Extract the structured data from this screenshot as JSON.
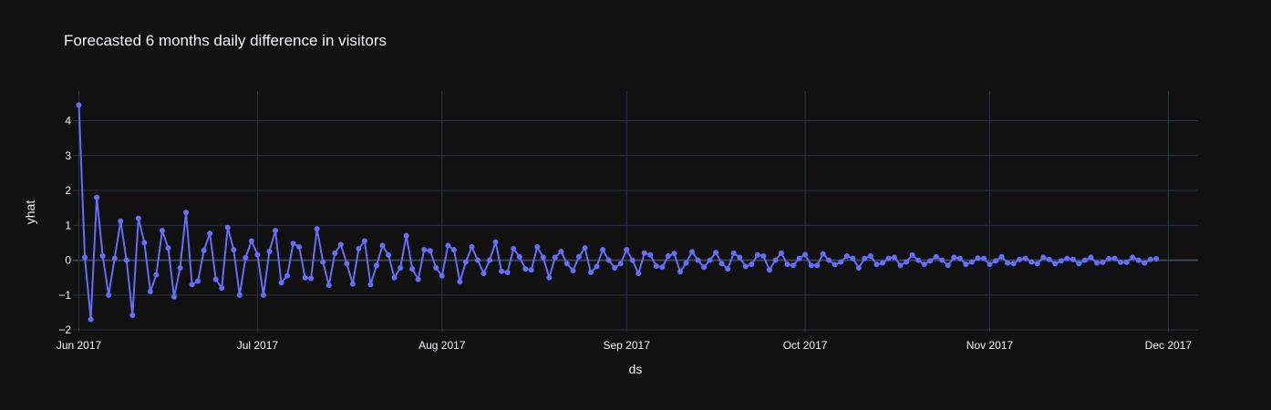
{
  "chart_data": {
    "type": "line",
    "title": "Forecasted 6 months daily difference in visitors",
    "xlabel": "ds",
    "ylabel": "yhat",
    "x_range": [
      "2017-05-31",
      "2017-12-06"
    ],
    "ylim": [
      -2.05,
      4.85
    ],
    "x_tick_labels": [
      "Jun 2017",
      "Jul 2017",
      "Aug 2017",
      "Sep 2017",
      "Oct 2017",
      "Nov 2017",
      "Dec 2017"
    ],
    "x_tick_dates": [
      "2017-06-01",
      "2017-07-01",
      "2017-08-01",
      "2017-09-01",
      "2017-10-01",
      "2017-11-01",
      "2017-12-01"
    ],
    "y_ticks": [
      -2,
      -1,
      0,
      1,
      2,
      3,
      4
    ],
    "y_tick_labels": [
      "−2",
      "−1",
      "0",
      "1",
      "2",
      "3",
      "4"
    ],
    "grid": true,
    "colors": {
      "background": "#111111",
      "grid": "#283442",
      "zeroline": "#3a4556",
      "line": "#636efa",
      "text": "#f2f5fa"
    },
    "series": [
      {
        "mode": "lines+markers",
        "x": [
          "2017-06-01",
          "2017-06-02",
          "2017-06-03",
          "2017-06-04",
          "2017-06-05",
          "2017-06-06",
          "2017-06-07",
          "2017-06-08",
          "2017-06-09",
          "2017-06-10",
          "2017-06-11",
          "2017-06-12",
          "2017-06-13",
          "2017-06-14",
          "2017-06-15",
          "2017-06-16",
          "2017-06-17",
          "2017-06-18",
          "2017-06-19",
          "2017-06-20",
          "2017-06-21",
          "2017-06-22",
          "2017-06-23",
          "2017-06-24",
          "2017-06-25",
          "2017-06-26",
          "2017-06-27",
          "2017-06-28",
          "2017-06-29",
          "2017-06-30",
          "2017-07-01",
          "2017-07-02",
          "2017-07-03",
          "2017-07-04",
          "2017-07-05",
          "2017-07-06",
          "2017-07-07",
          "2017-07-08",
          "2017-07-09",
          "2017-07-10",
          "2017-07-11",
          "2017-07-12",
          "2017-07-13",
          "2017-07-14",
          "2017-07-15",
          "2017-07-16",
          "2017-07-17",
          "2017-07-18",
          "2017-07-19",
          "2017-07-20",
          "2017-07-21",
          "2017-07-22",
          "2017-07-23",
          "2017-07-24",
          "2017-07-25",
          "2017-07-26",
          "2017-07-27",
          "2017-07-28",
          "2017-07-29",
          "2017-07-30",
          "2017-07-31",
          "2017-08-01",
          "2017-08-02",
          "2017-08-03",
          "2017-08-04",
          "2017-08-05",
          "2017-08-06",
          "2017-08-07",
          "2017-08-08",
          "2017-08-09",
          "2017-08-10",
          "2017-08-11",
          "2017-08-12",
          "2017-08-13",
          "2017-08-14",
          "2017-08-15",
          "2017-08-16",
          "2017-08-17",
          "2017-08-18",
          "2017-08-19",
          "2017-08-20",
          "2017-08-21",
          "2017-08-22",
          "2017-08-23",
          "2017-08-24",
          "2017-08-25",
          "2017-08-26",
          "2017-08-27",
          "2017-08-28",
          "2017-08-29",
          "2017-08-30",
          "2017-08-31",
          "2017-09-01",
          "2017-09-02",
          "2017-09-03",
          "2017-09-04",
          "2017-09-05",
          "2017-09-06",
          "2017-09-07",
          "2017-09-08",
          "2017-09-09",
          "2017-09-10",
          "2017-09-11",
          "2017-09-12",
          "2017-09-13",
          "2017-09-14",
          "2017-09-15",
          "2017-09-16",
          "2017-09-17",
          "2017-09-18",
          "2017-09-19",
          "2017-09-20",
          "2017-09-21",
          "2017-09-22",
          "2017-09-23",
          "2017-09-24",
          "2017-09-25",
          "2017-09-26",
          "2017-09-27",
          "2017-09-28",
          "2017-09-29",
          "2017-09-30",
          "2017-10-01",
          "2017-10-02",
          "2017-10-03",
          "2017-10-04",
          "2017-10-05",
          "2017-10-06",
          "2017-10-07",
          "2017-10-08",
          "2017-10-09",
          "2017-10-10",
          "2017-10-11",
          "2017-10-12",
          "2017-10-13",
          "2017-10-14",
          "2017-10-15",
          "2017-10-16",
          "2017-10-17",
          "2017-10-18",
          "2017-10-19",
          "2017-10-20",
          "2017-10-21",
          "2017-10-22",
          "2017-10-23",
          "2017-10-24",
          "2017-10-25",
          "2017-10-26",
          "2017-10-27",
          "2017-10-28",
          "2017-10-29",
          "2017-10-30",
          "2017-10-31",
          "2017-11-01",
          "2017-11-02",
          "2017-11-03",
          "2017-11-04",
          "2017-11-05",
          "2017-11-06",
          "2017-11-07",
          "2017-11-08",
          "2017-11-09",
          "2017-11-10",
          "2017-11-11",
          "2017-11-12",
          "2017-11-13",
          "2017-11-14",
          "2017-11-15",
          "2017-11-16",
          "2017-11-17",
          "2017-11-18",
          "2017-11-19",
          "2017-11-20",
          "2017-11-21",
          "2017-11-22",
          "2017-11-23",
          "2017-11-24",
          "2017-11-25",
          "2017-11-26",
          "2017-11-27",
          "2017-11-28",
          "2017-11-29"
        ],
        "y": [
          4.45,
          0.08,
          -1.7,
          1.8,
          0.12,
          -1.0,
          0.05,
          1.12,
          0.0,
          -1.58,
          1.2,
          0.5,
          -0.9,
          -0.42,
          0.85,
          0.35,
          -1.05,
          -0.22,
          1.37,
          -0.7,
          -0.6,
          0.28,
          0.77,
          -0.55,
          -0.8,
          0.94,
          0.3,
          -1.0,
          0.07,
          0.55,
          0.16,
          -1.0,
          0.25,
          0.85,
          -0.65,
          -0.45,
          0.48,
          0.38,
          -0.5,
          -0.52,
          0.9,
          -0.05,
          -0.72,
          0.2,
          0.45,
          -0.1,
          -0.68,
          0.33,
          0.55,
          -0.7,
          -0.15,
          0.42,
          0.15,
          -0.5,
          -0.22,
          0.7,
          -0.25,
          -0.55,
          0.3,
          0.27,
          -0.22,
          -0.45,
          0.42,
          0.3,
          -0.62,
          -0.05,
          0.38,
          0.0,
          -0.38,
          0.0,
          0.52,
          -0.32,
          -0.35,
          0.33,
          0.1,
          -0.25,
          -0.28,
          0.38,
          0.08,
          -0.5,
          0.08,
          0.25,
          -0.1,
          -0.3,
          0.1,
          0.35,
          -0.35,
          -0.18,
          0.3,
          0.0,
          -0.22,
          -0.1,
          0.3,
          0.0,
          -0.38,
          0.2,
          0.15,
          -0.17,
          -0.2,
          0.12,
          0.19,
          -0.33,
          -0.08,
          0.24,
          0.0,
          -0.2,
          0.0,
          0.22,
          -0.1,
          -0.25,
          0.2,
          0.08,
          -0.18,
          -0.12,
          0.15,
          0.12,
          -0.28,
          0.0,
          0.2,
          -0.12,
          -0.15,
          0.05,
          0.16,
          -0.15,
          -0.15,
          0.18,
          0.0,
          -0.13,
          -0.05,
          0.12,
          0.05,
          -0.22,
          0.05,
          0.12,
          -0.12,
          -0.08,
          0.05,
          0.08,
          -0.15,
          -0.05,
          0.15,
          0.0,
          -0.12,
          -0.02,
          0.1,
          0.0,
          -0.15,
          0.08,
          0.05,
          -0.12,
          -0.05,
          0.06,
          0.05,
          -0.12,
          -0.02,
          0.1,
          -0.08,
          -0.1,
          0.02,
          0.05,
          -0.05,
          -0.1,
          0.08,
          0.02,
          -0.1,
          -0.02,
          0.05,
          0.02,
          -0.1,
          0.0,
          0.08,
          -0.08,
          -0.06,
          0.04,
          0.05,
          -0.06,
          -0.06,
          0.08,
          0.0,
          -0.08,
          0.02,
          0.04
        ]
      }
    ]
  }
}
